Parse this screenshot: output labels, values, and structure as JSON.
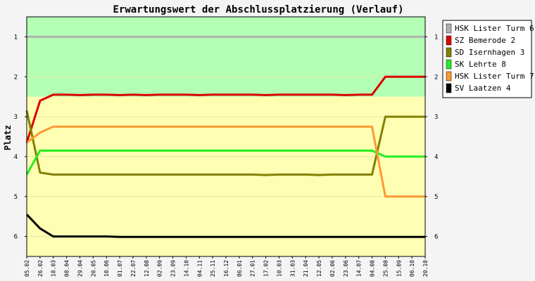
{
  "chart_data": {
    "type": "line",
    "title": "Erwartungswert der Abschlussplatzierung (Verlauf)",
    "ylabel": "Platz",
    "xlabel": "",
    "ylim": [
      6.5,
      0.5
    ],
    "y_inverted": true,
    "yticks": [
      1,
      2,
      3,
      4,
      5,
      6
    ],
    "bands": [
      {
        "from": 0.5,
        "to": 2.5,
        "color": "#b3ffb3"
      },
      {
        "from": 2.5,
        "to": 6.5,
        "color": "#ffffb3"
      }
    ],
    "x": [
      "05.02",
      "26.02",
      "18.03",
      "08.04",
      "29.04",
      "20.05",
      "10.06",
      "01.07",
      "22.07",
      "12.08",
      "02.09",
      "23.09",
      "14.10",
      "04.11",
      "25.11",
      "16.12",
      "06.01",
      "27.01",
      "17.02",
      "10.03",
      "31.03",
      "21.04",
      "12.05",
      "02.06",
      "23.06",
      "14.07",
      "04.08",
      "25.08",
      "15.09",
      "06.10",
      "20.10"
    ],
    "legend_position": "right",
    "series": [
      {
        "name": "HSK Lister Turm 6",
        "color": "#b0b0b0",
        "values": [
          1,
          1,
          1,
          1,
          1,
          1,
          1,
          1,
          1,
          1,
          1,
          1,
          1,
          1,
          1,
          1,
          1,
          1,
          1,
          1,
          1,
          1,
          1,
          1,
          1,
          1,
          1,
          1,
          1,
          1,
          1
        ]
      },
      {
        "name": "SZ Bemerode 2",
        "color": "#dd0000",
        "values": [
          3.65,
          2.6,
          2.45,
          2.45,
          2.46,
          2.45,
          2.45,
          2.46,
          2.45,
          2.46,
          2.45,
          2.45,
          2.45,
          2.46,
          2.45,
          2.45,
          2.45,
          2.45,
          2.46,
          2.45,
          2.45,
          2.45,
          2.45,
          2.45,
          2.46,
          2.45,
          2.45,
          2,
          2,
          2,
          2
        ]
      },
      {
        "name": "SD Isernhagen 3",
        "color": "#808000",
        "values": [
          2.85,
          4.4,
          4.45,
          4.45,
          4.45,
          4.45,
          4.45,
          4.45,
          4.45,
          4.45,
          4.45,
          4.45,
          4.45,
          4.45,
          4.45,
          4.45,
          4.45,
          4.45,
          4.46,
          4.45,
          4.45,
          4.45,
          4.46,
          4.45,
          4.45,
          4.45,
          4.45,
          3,
          3,
          3,
          3
        ]
      },
      {
        "name": "SK Lehrte 8",
        "color": "#22ee22",
        "values": [
          4.45,
          3.85,
          3.85,
          3.85,
          3.85,
          3.85,
          3.85,
          3.85,
          3.85,
          3.85,
          3.85,
          3.85,
          3.85,
          3.85,
          3.85,
          3.85,
          3.85,
          3.85,
          3.85,
          3.85,
          3.85,
          3.85,
          3.85,
          3.85,
          3.85,
          3.85,
          3.85,
          4,
          4,
          4,
          4
        ]
      },
      {
        "name": "HSK Lister Turm 7",
        "color": "#ff9933",
        "values": [
          3.65,
          3.4,
          3.25,
          3.25,
          3.25,
          3.25,
          3.25,
          3.25,
          3.25,
          3.25,
          3.25,
          3.25,
          3.25,
          3.25,
          3.25,
          3.25,
          3.25,
          3.25,
          3.25,
          3.25,
          3.25,
          3.25,
          3.25,
          3.25,
          3.25,
          3.25,
          3.25,
          5,
          5,
          5,
          5
        ]
      },
      {
        "name": "SV Laatzen 4",
        "color": "#000000",
        "values": [
          5.45,
          5.8,
          6,
          6,
          6,
          6,
          6,
          6.01,
          6.01,
          6.01,
          6.01,
          6.01,
          6.01,
          6.01,
          6.01,
          6.01,
          6.01,
          6.01,
          6.01,
          6.01,
          6.01,
          6.01,
          6.01,
          6.01,
          6.01,
          6.01,
          6.01,
          6.01,
          6.01,
          6.01,
          6.01
        ]
      }
    ]
  }
}
